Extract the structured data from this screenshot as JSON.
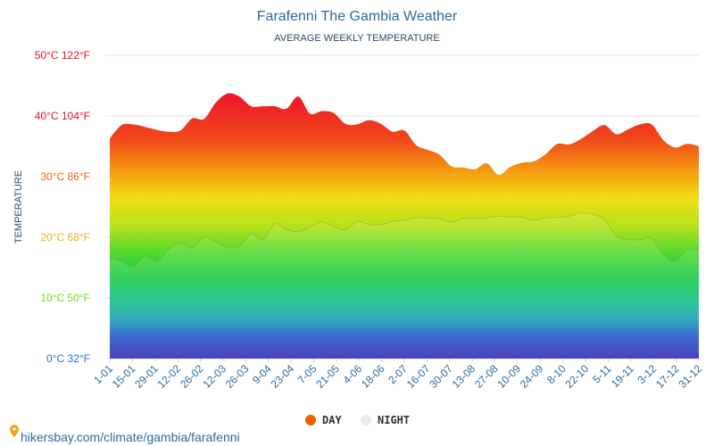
{
  "chart_data": {
    "type": "area",
    "title": "Farafenni The Gambia Weather",
    "subtitle": "AVERAGE WEEKLY TEMPERATURE",
    "ylabel": "TEMPERATURE",
    "xlabel": "",
    "ylim": [
      0,
      50
    ],
    "grid": true,
    "legend_position": "bottom",
    "y_ticks": [
      {
        "value": 0,
        "label": "0°C 32°F",
        "color": "#1a73e8"
      },
      {
        "value": 10,
        "label": "10°C 50°F",
        "color": "#7ad91a"
      },
      {
        "value": 20,
        "label": "20°C 68°F",
        "color": "#e8b21a"
      },
      {
        "value": 30,
        "label": "30°C 86°F",
        "color": "#f2620f"
      },
      {
        "value": 40,
        "label": "40°C 104°F",
        "color": "#e8102a"
      },
      {
        "value": 50,
        "label": "50°C 122°F",
        "color": "#e8102a"
      }
    ],
    "x_tick_labels": [
      "1-01",
      "15-01",
      "29-01",
      "12-02",
      "26-02",
      "12-03",
      "26-03",
      "9-04",
      "23-04",
      "7-05",
      "21-05",
      "4-06",
      "18-06",
      "2-07",
      "16-07",
      "30-07",
      "13-08",
      "27-08",
      "10-09",
      "24-09",
      "8-10",
      "22-10",
      "5-11",
      "19-11",
      "3-12",
      "17-12",
      "31-12"
    ],
    "series": [
      {
        "name": "DAY",
        "color": "#f25c05",
        "values": [
          36.3,
          38.5,
          38.6,
          38.2,
          37.7,
          37.4,
          37.6,
          39.6,
          39.5,
          42.2,
          43.7,
          43.2,
          41.6,
          41.6,
          41.6,
          41.2,
          43.2,
          40.4,
          40.8,
          40.5,
          38.7,
          38.6,
          39.3,
          38.7,
          37.4,
          37.6,
          35.2,
          34.4,
          33.6,
          31.7,
          31.5,
          31.2,
          32.2,
          30.3,
          31.6,
          32.3,
          32.5,
          33.7,
          35.4,
          35.3,
          36.2,
          37.5,
          38.5,
          37.0,
          37.8,
          38.6,
          38.6,
          36.0,
          34.8,
          35.4,
          35.0
        ]
      },
      {
        "name": "NIGHT",
        "color": "#e4ecf2",
        "values": [
          16.6,
          16.0,
          15.2,
          16.9,
          16.1,
          18.0,
          19.0,
          18.2,
          20.0,
          19.2,
          18.3,
          18.5,
          20.6,
          19.6,
          22.2,
          21.3,
          20.9,
          21.7,
          22.5,
          21.8,
          21.2,
          22.6,
          22.1,
          22.1,
          22.6,
          22.8,
          23.2,
          23.2,
          23.0,
          22.5,
          23.1,
          23.1,
          23.2,
          23.5,
          23.3,
          23.3,
          22.8,
          23.2,
          23.3,
          23.5,
          24.0,
          23.8,
          22.9,
          20.2,
          19.6,
          19.6,
          19.8,
          17.2,
          16.1,
          17.9,
          17.9
        ]
      }
    ]
  },
  "footer": {
    "text": "hikersbay.com/climate/gambia/farafenni",
    "icon": "location-pin-icon",
    "icon_color": "#f5a21a"
  }
}
